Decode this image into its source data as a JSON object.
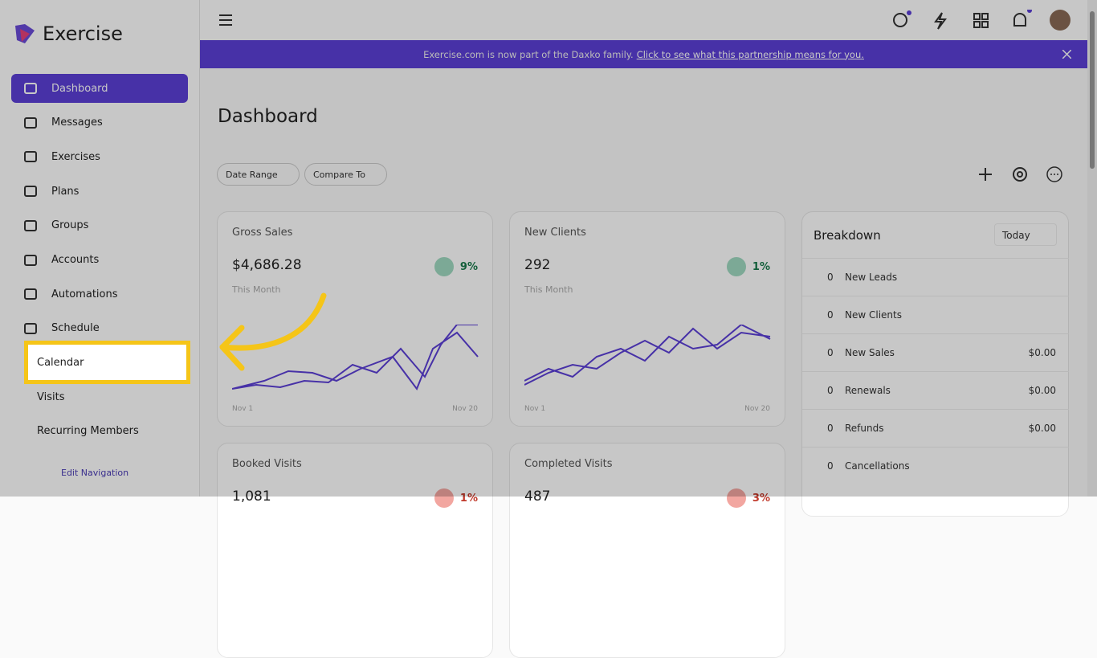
{
  "sidebar": {
    "brand": "Exercise",
    "nav": [
      "Dashboard",
      "Messages",
      "Exercises",
      "Plans",
      "Groups",
      "Accounts",
      "Automations",
      "Schedule"
    ],
    "subnav": [
      "Calendar",
      "Visits",
      "Recurring Members"
    ],
    "edit": "Edit Navigation"
  },
  "banner": {
    "text": "Exercise.com is now part of the Daxko family.",
    "link": "Click to see what this partnership means for you."
  },
  "page": {
    "title": "Dashboard",
    "filters": [
      "Date Range",
      "Compare To"
    ]
  },
  "cards": [
    {
      "title": "Gross Sales",
      "value": "$4,686.28",
      "change": "9%",
      "period": "This Month",
      "start": "Nov 1",
      "end": "Nov 20"
    },
    {
      "title": "New Clients",
      "value": "292",
      "change": "1%",
      "period": "This Month",
      "start": "Nov 1",
      "end": "Nov 20"
    },
    {
      "title": "Booked Visits",
      "value": "1,081",
      "change": "1%"
    },
    {
      "title": "Completed Visits",
      "value": "487",
      "change": "3%"
    }
  ],
  "breakdown": {
    "title": "Breakdown",
    "period": "Today",
    "rows": [
      {
        "count": 0,
        "label": "New Leads"
      },
      {
        "count": 0,
        "label": "New Clients"
      },
      {
        "count": 0,
        "label": "New Sales",
        "amount": "$0.00"
      },
      {
        "count": 0,
        "label": "Renewals",
        "amount": "$0.00"
      },
      {
        "count": 0,
        "label": "Refunds",
        "amount": "$0.00"
      },
      {
        "count": 0,
        "label": "Cancellations"
      }
    ]
  }
}
